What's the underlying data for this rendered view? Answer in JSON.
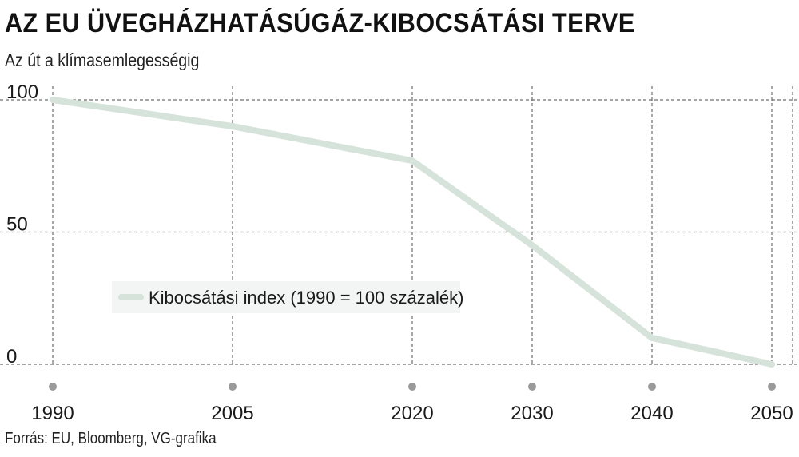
{
  "title": "AZ EU ÜVEGHÁZHATÁSÚGÁZ-KIBOCSÁTÁSI TERVE",
  "subtitle": "Az út a klímasemlegességig",
  "source": "Forrás: EU, Bloomberg, VG-grafika",
  "chart_data": {
    "type": "line",
    "x": [
      1990,
      2005,
      2020,
      2030,
      2040,
      2050
    ],
    "x_tick_labels": [
      "1990",
      "2005",
      "2020",
      "2030",
      "2040",
      "2050"
    ],
    "y_ticks": [
      0,
      50,
      100
    ],
    "y_tick_labels": [
      "0",
      "50",
      "100"
    ],
    "ylim": [
      0,
      100
    ],
    "xlim": [
      1990,
      2050
    ],
    "grid": true,
    "legend_placement": "center-left",
    "series": [
      {
        "name": "Kibocsátási index (1990 = 100 százalék)",
        "values": [
          100,
          90,
          77,
          45,
          10,
          0
        ],
        "color": "#d5e3da"
      }
    ],
    "colors": {
      "grid": "#6f6f6f",
      "tick_dot": "#9a9a9a",
      "legend_bg": "#f3f5f4"
    }
  }
}
